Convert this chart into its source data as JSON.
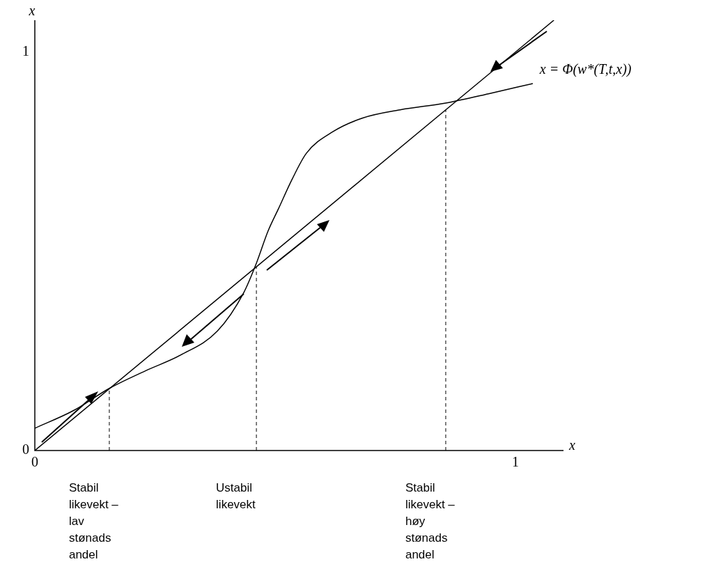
{
  "chart_data": {
    "type": "line",
    "xlabel": "x",
    "ylabel": "x",
    "xlim": [
      0,
      1.1
    ],
    "ylim": [
      0,
      1.08
    ],
    "xticks": [
      0,
      1
    ],
    "yticks": [
      0,
      1
    ],
    "legend": false,
    "marker": "none",
    "line_style": "solid",
    "grid": false,
    "series": [
      {
        "color": "#000000",
        "x": [
          0,
          1.08
        ],
        "values": [
          0,
          1.08
        ]
      },
      {
        "name": "x = Φ(w*(T,t,x))",
        "color": "#000000",
        "x": [
          0,
          0.08,
          0.155,
          0.23,
          0.304,
          0.38,
          0.435,
          0.461,
          0.485,
          0.507,
          0.535,
          0.565,
          0.62,
          0.681,
          0.76,
          0.855,
          0.95,
          1.036
        ],
        "values": [
          0.056,
          0.1,
          0.156,
          0.2,
          0.24,
          0.3,
          0.397,
          0.47,
          0.55,
          0.607,
          0.68,
          0.746,
          0.8,
          0.834,
          0.855,
          0.872,
          0.897,
          0.921
        ]
      }
    ],
    "ref_lines": [
      {
        "axis": "x",
        "value": 0.155,
        "label": "Stabil likevekt – lav stønads andel",
        "line_style": "dashed",
        "color": "#000000"
      },
      {
        "axis": "x",
        "value": 0.461,
        "label": "Ustabil likevekt",
        "line_style": "dashed",
        "color": "#000000"
      },
      {
        "axis": "x",
        "value": 0.855,
        "label": "Stabil likevekt – høy stønads andel",
        "line_style": "dashed",
        "color": "#000000"
      }
    ]
  }
}
